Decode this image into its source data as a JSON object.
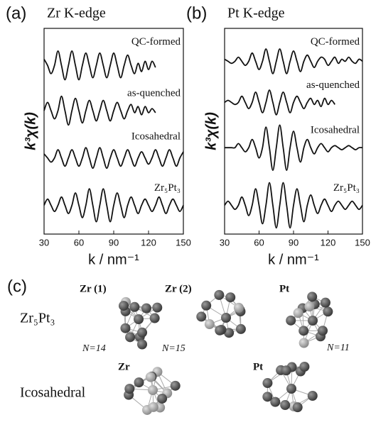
{
  "chart_data": [
    {
      "type": "line",
      "panel": "(a)",
      "title": "Zr K-edge",
      "y_label": "k³χ(k)",
      "x_label": "k  / nm⁻¹",
      "x": [
        30,
        33,
        36,
        39,
        42,
        45,
        48,
        51,
        54,
        57,
        60,
        63,
        66,
        69,
        72,
        75,
        78,
        81,
        84,
        87,
        90,
        93,
        96,
        99,
        102,
        105,
        108,
        111,
        114,
        117,
        120,
        123,
        126,
        129,
        132,
        135,
        138,
        141,
        144,
        147,
        150
      ],
      "xlim": [
        30,
        150
      ],
      "xticks": [
        30,
        60,
        90,
        120,
        150
      ],
      "ylim": [
        0,
        100
      ],
      "series": [
        {
          "name": "QC-formed",
          "color": "#111111",
          "values": [
            85,
            82,
            78,
            82,
            89,
            82,
            75,
            82,
            89,
            82,
            75,
            82,
            88,
            82,
            76,
            82,
            88,
            82,
            76,
            82,
            88,
            82,
            76,
            82,
            87,
            82,
            78,
            83,
            79,
            84,
            80,
            84,
            81,
            null,
            null,
            null,
            null,
            null,
            null,
            null,
            null
          ]
        },
        {
          "name": "as-quenched",
          "color": "#111111",
          "values": [
            60,
            64,
            60,
            56,
            60,
            67,
            60,
            53,
            60,
            66,
            60,
            54,
            60,
            65,
            60,
            55,
            60,
            65,
            60,
            55,
            60,
            64,
            60,
            56,
            60,
            63,
            59,
            62,
            58,
            62,
            59,
            61,
            59,
            null,
            null,
            null,
            null,
            null,
            null,
            null,
            null
          ]
        },
        {
          "name": "Icosahedral",
          "color": "#111111",
          "values": [
            39,
            37,
            35,
            37,
            41,
            37,
            33,
            37,
            41,
            37,
            33,
            37,
            42,
            37,
            32,
            37,
            42,
            37,
            32,
            37,
            41,
            37,
            33,
            37,
            41,
            37,
            33,
            37,
            40,
            37,
            34,
            37,
            41,
            37,
            33,
            37,
            41,
            37,
            33,
            37,
            40
          ]
        },
        {
          "name": "Zr₅Pt₃",
          "color": "#111111",
          "values": [
            14,
            17,
            14,
            11,
            14,
            18,
            14,
            10,
            14,
            20,
            14,
            8,
            14,
            22,
            14,
            6,
            14,
            22,
            14,
            6,
            14,
            20,
            14,
            8,
            14,
            18,
            14,
            10,
            14,
            17,
            14,
            11,
            14,
            18,
            14,
            10,
            14,
            17,
            14,
            11,
            14
          ]
        }
      ]
    },
    {
      "type": "line",
      "panel": "(b)",
      "title": "Pt K-edge",
      "y_label": "k³χ(k)",
      "x_label": "k  / nm⁻¹",
      "x": [
        30,
        33,
        36,
        39,
        42,
        45,
        48,
        51,
        54,
        57,
        60,
        63,
        66,
        69,
        72,
        75,
        78,
        81,
        84,
        87,
        90,
        93,
        96,
        99,
        102,
        105,
        108,
        111,
        114,
        117,
        120,
        123,
        126,
        129,
        132,
        135,
        138,
        141,
        144,
        147,
        150
      ],
      "xlim": [
        30,
        150
      ],
      "xticks": [
        30,
        60,
        90,
        120,
        150
      ],
      "ylim": [
        0,
        100
      ],
      "series": [
        {
          "name": "QC-formed",
          "color": "#111111",
          "values": [
            85,
            84,
            83,
            84,
            86,
            84,
            82,
            84,
            88,
            84,
            80,
            84,
            90,
            84,
            78,
            84,
            90,
            84,
            78,
            84,
            89,
            84,
            79,
            84,
            87,
            84,
            81,
            84,
            86,
            85,
            82,
            84,
            86,
            83,
            85,
            84,
            86,
            84,
            83,
            85,
            84
          ]
        },
        {
          "name": "as-quenched",
          "color": "#111111",
          "values": [
            64,
            65,
            64,
            63,
            64,
            67,
            64,
            61,
            64,
            69,
            64,
            59,
            64,
            70,
            64,
            58,
            64,
            69,
            64,
            59,
            64,
            67,
            64,
            61,
            64,
            66,
            63,
            65,
            62,
            66,
            63,
            65,
            63,
            null,
            null,
            null,
            null,
            null,
            null,
            null,
            null
          ]
        },
        {
          "name": "Icosahedral",
          "color": "#111111",
          "values": [
            42,
            42,
            42,
            42,
            44,
            42,
            40,
            42,
            46,
            42,
            37,
            42,
            52,
            42,
            31,
            42,
            53,
            42,
            31,
            42,
            50,
            42,
            35,
            42,
            46,
            42,
            39,
            42,
            44,
            42,
            40,
            42,
            43,
            42,
            41,
            42,
            43,
            42,
            41,
            42,
            42
          ]
        },
        {
          "name": "Zr₅Pt₃",
          "color": "#111111",
          "values": [
            14,
            16,
            14,
            12,
            14,
            18,
            14,
            9,
            14,
            22,
            14,
            5,
            14,
            25,
            14,
            3,
            14,
            25,
            14,
            3,
            14,
            22,
            14,
            6,
            14,
            19,
            14,
            10,
            14,
            17,
            14,
            11,
            14,
            16,
            14,
            12,
            14,
            16,
            14,
            12,
            14
          ]
        }
      ]
    }
  ],
  "panel_c": {
    "label": "(c)",
    "rows": [
      {
        "name": "Zr₅Pt₃",
        "clusters": [
          {
            "label": "Zr (1)",
            "n": "N=14"
          },
          {
            "label": "Zr (2)",
            "n": "N=15"
          },
          {
            "label": "Pt",
            "n": "N=11"
          }
        ]
      },
      {
        "name": "Icosahedral",
        "clusters": [
          {
            "label": "Zr"
          },
          {
            "label": "Pt"
          }
        ]
      }
    ]
  }
}
